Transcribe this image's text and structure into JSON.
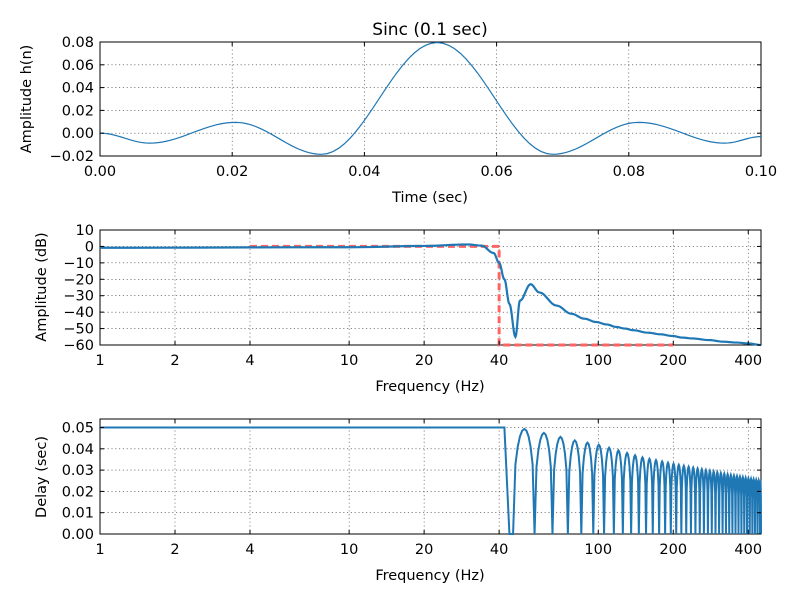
{
  "chart_data": [
    {
      "type": "line",
      "title": "Sinc (0.1 sec)",
      "xlabel": "Time (sec)",
      "ylabel": "Amplitude h(n)",
      "xlim": [
        0.0,
        0.1
      ],
      "ylim": [
        -0.02,
        0.08
      ],
      "x_scale": "linear",
      "grid": true,
      "xticks": [
        0.0,
        0.02,
        0.04,
        0.06,
        0.08,
        0.1
      ],
      "xtick_labels": [
        "0.00",
        "0.02",
        "0.04",
        "0.06",
        "0.08",
        "0.10"
      ],
      "yticks": [
        -0.02,
        0.0,
        0.02,
        0.04,
        0.06,
        0.08
      ],
      "ytick_labels": [
        "−0.02",
        "0.00",
        "0.02",
        "0.04",
        "0.06",
        "0.08"
      ],
      "series": [
        {
          "color": "#1f77b4",
          "x": [
            0.0,
            0.0075,
            0.0205,
            0.0335,
            0.051,
            0.0685,
            0.0815,
            0.0945,
            0.1
          ],
          "y": [
            0.0,
            -0.0087,
            0.0095,
            -0.0185,
            0.0795,
            -0.0185,
            0.0095,
            -0.0087,
            -0.003
          ]
        }
      ]
    },
    {
      "type": "line",
      "title": "",
      "xlabel": "Frequency (Hz)",
      "ylabel": "Amplitude (dB)",
      "x_scale": "log",
      "xlim": [
        1,
        450
      ],
      "ylim": [
        -60,
        10
      ],
      "grid": true,
      "xticks": [
        1,
        2,
        4,
        10,
        20,
        40,
        100,
        200,
        400
      ],
      "xtick_labels": [
        "1",
        "2",
        "4",
        "10",
        "20",
        "40",
        "100",
        "200",
        "400"
      ],
      "yticks": [
        -60,
        -50,
        -40,
        -30,
        -20,
        -10,
        0,
        10
      ],
      "ytick_labels": [
        "−60",
        "−50",
        "−40",
        "−30",
        "−20",
        "−10",
        "0",
        "10"
      ],
      "series": [
        {
          "role": "response",
          "color": "#1f77b4",
          "x": [
            1,
            10,
            20,
            30,
            34,
            38,
            40,
            42,
            44,
            46.5,
            48.5,
            53.5,
            58,
            68,
            78,
            88,
            98,
            108,
            118,
            128,
            138,
            158,
            178,
            198,
            218,
            238,
            278,
            318,
            358,
            398,
            450
          ],
          "y": [
            -0.8,
            -0.5,
            0.3,
            1.2,
            0.5,
            -4,
            -10,
            -20,
            -35,
            -55,
            -33,
            -23,
            -28,
            -36,
            -41,
            -44,
            -46,
            -47.5,
            -49,
            -50,
            -51,
            -52.5,
            -53.5,
            -54.5,
            -55.5,
            -56,
            -57,
            -58,
            -58.5,
            -59,
            -60
          ]
        },
        {
          "role": "target",
          "color": "#ff6464",
          "style": "dashed",
          "x": [
            4,
            40,
            40,
            200
          ],
          "y": [
            0,
            0,
            -60,
            -60
          ]
        }
      ]
    },
    {
      "type": "line",
      "title": "",
      "xlabel": "Frequency (Hz)",
      "ylabel": "Delay (sec)",
      "x_scale": "log",
      "xlim": [
        1,
        450
      ],
      "ylim": [
        0.0,
        0.054
      ],
      "grid": true,
      "xticks": [
        1,
        2,
        4,
        10,
        20,
        40,
        100,
        200,
        400
      ],
      "xtick_labels": [
        "1",
        "2",
        "4",
        "10",
        "20",
        "40",
        "100",
        "200",
        "400"
      ],
      "yticks": [
        0.0,
        0.01,
        0.02,
        0.03,
        0.04,
        0.05
      ],
      "ytick_labels": [
        "0.00",
        "0.01",
        "0.02",
        "0.03",
        "0.04",
        "0.05"
      ],
      "series": [
        {
          "color": "#1f77b4",
          "passband": {
            "x": [
              1,
              42
            ],
            "y": 0.05
          },
          "stopband_peaks": {
            "x": [
              46,
              53,
              63,
              80,
              100,
              150,
              200,
              300,
              450
            ],
            "y": [
              0.05,
              0.049,
              0.047,
              0.044,
              0.042,
              0.036,
              0.033,
              0.029,
              0.025
            ]
          }
        }
      ]
    }
  ]
}
